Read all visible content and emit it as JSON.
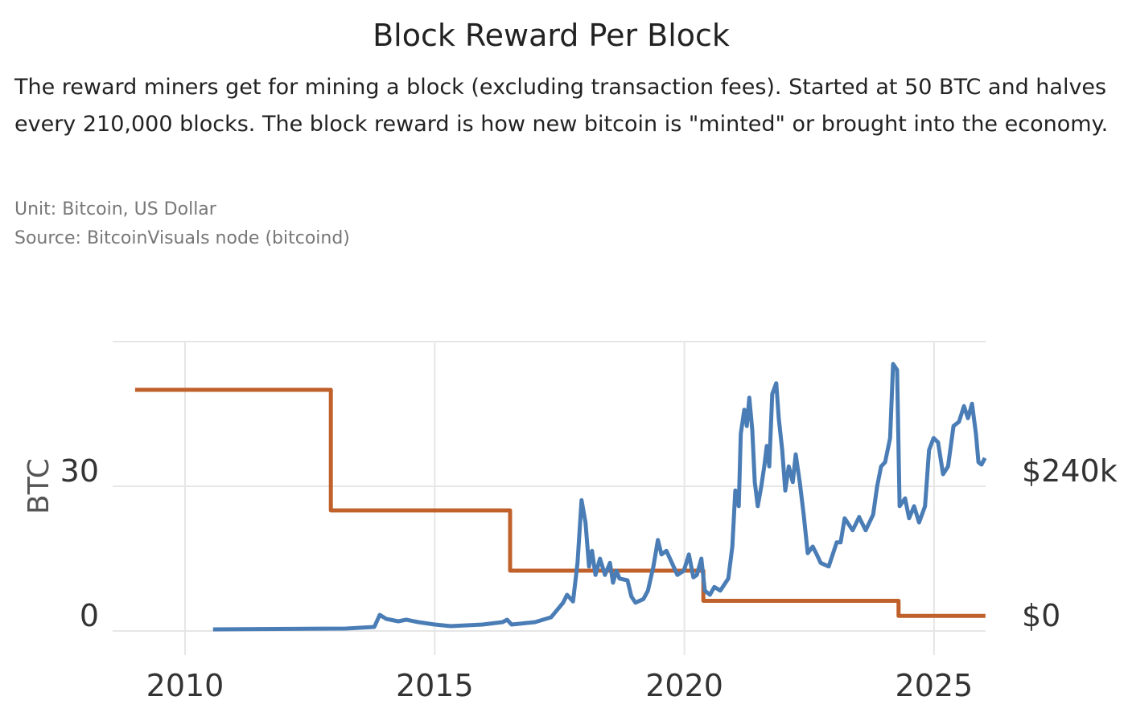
{
  "title": "Block Reward Per Block",
  "description": "The reward miners get for mining a block (excluding transaction fees). Started at 50 BTC and halves every 210,000 blocks. The block reward is how new bitcoin is \"minted\" or brought into the economy.",
  "unit": "Unit:  Bitcoin, US Dollar",
  "source": "Source:  BitcoinVisuals node (bitcoind)",
  "chart_data": {
    "type": "line",
    "title": "Block Reward Per Block",
    "ylabel": "BTC",
    "xlabel": "",
    "grid": true,
    "xlim": [
      2008.55,
      2026.03
    ],
    "ylim_left": [
      0,
      60
    ],
    "ylim_right": [
      0,
      480000
    ],
    "x_ticks": [
      {
        "value": 2010,
        "label": "2010"
      },
      {
        "value": 2015,
        "label": "2015"
      },
      {
        "value": 2020,
        "label": "2020"
      },
      {
        "value": 2025,
        "label": "2025"
      }
    ],
    "y_ticks_left": [
      {
        "value": 0,
        "label": "0"
      },
      {
        "value": 30,
        "label": "30"
      }
    ],
    "y_ticks_right": [
      {
        "value": 0,
        "label": "$0"
      },
      {
        "value": 240000,
        "label": "$240k"
      }
    ],
    "series": [
      {
        "axis": "left",
        "unit": "BTC",
        "color": "#c0612b",
        "shape": "step",
        "x": [
          2009.0,
          2012.92,
          2016.51,
          2020.38,
          2024.29,
          2026.03
        ],
        "y": [
          50,
          25,
          12.5,
          6.25,
          3.125,
          3.125
        ]
      },
      {
        "axis": "right",
        "unit": "USD",
        "color": "#4a7db5",
        "x": [
          2010.56,
          2013.22,
          2013.79,
          2013.9,
          2014.03,
          2014.27,
          2014.43,
          2014.67,
          2015.0,
          2015.32,
          2015.96,
          2016.36,
          2016.45,
          2016.54,
          2017.01,
          2017.33,
          2017.57,
          2017.65,
          2017.77,
          2017.86,
          2017.94,
          2018.02,
          2018.09,
          2018.15,
          2018.22,
          2018.31,
          2018.41,
          2018.51,
          2018.57,
          2018.64,
          2018.7,
          2018.86,
          2018.94,
          2019.02,
          2019.18,
          2019.27,
          2019.38,
          2019.47,
          2019.54,
          2019.64,
          2019.75,
          2019.86,
          2019.99,
          2020.09,
          2020.18,
          2020.25,
          2020.34,
          2020.41,
          2020.51,
          2020.6,
          2020.72,
          2020.88,
          2020.96,
          2021.02,
          2021.09,
          2021.13,
          2021.2,
          2021.25,
          2021.3,
          2021.36,
          2021.41,
          2021.47,
          2021.54,
          2021.6,
          2021.65,
          2021.7,
          2021.76,
          2021.84,
          2021.89,
          2021.96,
          2022.02,
          2022.09,
          2022.17,
          2022.23,
          2022.31,
          2022.39,
          2022.47,
          2022.57,
          2022.65,
          2022.73,
          2022.89,
          2023.05,
          2023.13,
          2023.21,
          2023.37,
          2023.5,
          2023.63,
          2023.78,
          2023.86,
          2023.94,
          2024.02,
          2024.12,
          2024.18,
          2024.26,
          2024.31,
          2024.42,
          2024.5,
          2024.6,
          2024.7,
          2024.82,
          2024.9,
          2024.99,
          2025.08,
          2025.18,
          2025.28,
          2025.39,
          2025.5,
          2025.6,
          2025.68,
          2025.76,
          2025.84,
          2025.89,
          2025.95,
          2026.02
        ],
        "y": [
          2700,
          4000,
          6700,
          26700,
          20000,
          16000,
          18700,
          14700,
          10700,
          8000,
          10700,
          14700,
          18700,
          10700,
          14700,
          22700,
          46700,
          60000,
          49000,
          113000,
          217000,
          180000,
          107000,
          133000,
          93000,
          120000,
          93000,
          113000,
          80000,
          100000,
          87000,
          84000,
          57000,
          47000,
          53000,
          67000,
          107000,
          151000,
          127000,
          133000,
          113000,
          93000,
          100000,
          127000,
          89000,
          93000,
          120000,
          67000,
          60000,
          73000,
          67000,
          87000,
          140000,
          233000,
          207000,
          327000,
          367000,
          340000,
          387000,
          333000,
          247000,
          207000,
          240000,
          273000,
          307000,
          273000,
          393000,
          411000,
          353000,
          300000,
          233000,
          273000,
          247000,
          293000,
          247000,
          193000,
          129000,
          140000,
          127000,
          113000,
          107000,
          147000,
          147000,
          187000,
          167000,
          189000,
          167000,
          193000,
          240000,
          273000,
          280000,
          320000,
          443000,
          433000,
          207000,
          220000,
          187000,
          207000,
          180000,
          207000,
          300000,
          320000,
          313000,
          260000,
          273000,
          340000,
          347000,
          373000,
          353000,
          377000,
          327000,
          280000,
          276000,
          287000
        ]
      }
    ]
  }
}
